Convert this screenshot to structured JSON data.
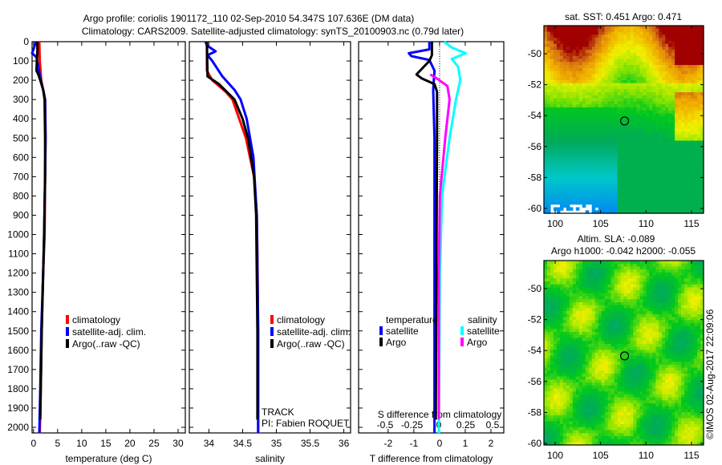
{
  "title": "Argo profile: coriolis 1901172_110 02-Sep-2010 54.347S 107.636E (DM data)",
  "subtitle": "Climatology: CARS2009. Satellite-adjusted climatology: synTS_20100903.nc (0.79d later)",
  "colors": {
    "climatology": "#ff0000",
    "satellite": "#0000ff",
    "argo": "#000000",
    "sal_satellite": "#00ffff",
    "sal_argo": "#ff00ff"
  },
  "chart_data": [
    {
      "type": "line",
      "name": "temperature-profile",
      "xlabel": "temperature (deg C)",
      "xlim": [
        -0.3,
        31.5
      ],
      "ylim": [
        2050,
        0
      ],
      "xticks": [
        "0",
        "5",
        "10",
        "15",
        "20",
        "25",
        "30"
      ],
      "xtick_values": [
        0,
        5,
        10,
        15,
        20,
        25,
        30
      ],
      "yticks": [
        "0",
        "100",
        "200",
        "300",
        "400",
        "500",
        "600",
        "700",
        "800",
        "900",
        "1000",
        "1100",
        "1200",
        "1300",
        "1400",
        "1500",
        "1600",
        "1700",
        "1800",
        "1900",
        "2000"
      ],
      "legend": [
        "climatology",
        "satellite-adj. clim.",
        "Argo(..raw -QC)"
      ],
      "series": [
        {
          "name": "climatology",
          "color": "#ff0000",
          "depth": [
            0,
            100,
            200,
            300,
            500,
            700,
            1000,
            1200,
            1500,
            1800,
            2030
          ],
          "values": [
            1.2,
            1.3,
            1.6,
            2.4,
            2.5,
            2.4,
            2.3,
            2.0,
            1.7,
            1.5,
            1.3
          ]
        },
        {
          "name": "satellite-adj. clim.",
          "color": "#0000ff",
          "depth": [
            0,
            40,
            60,
            80,
            120,
            200,
            260,
            300,
            500,
            700,
            1000,
            1200,
            1500,
            1800,
            2030
          ],
          "values": [
            0.5,
            0.0,
            -0.3,
            0.6,
            0.9,
            1.5,
            2.1,
            2.4,
            2.5,
            2.4,
            2.2,
            2.0,
            1.6,
            1.4,
            1.2
          ]
        },
        {
          "name": "Argo(..raw -QC)",
          "color": "#000000",
          "depth": [
            0,
            50,
            150,
            170,
            200,
            250,
            300,
            500,
            700,
            1000,
            1200,
            1500,
            1800,
            1960
          ],
          "values": [
            0.8,
            0.8,
            0.6,
            1.0,
            1.4,
            2.0,
            2.3,
            2.4,
            2.4,
            2.2,
            2.0,
            1.7,
            1.5,
            1.4
          ]
        }
      ]
    },
    {
      "type": "line",
      "name": "salinity-profile",
      "xlabel": "salinity",
      "xlim": [
        33.71,
        36.1
      ],
      "ylim": [
        2050,
        0
      ],
      "xticks": [
        "34",
        "34.5",
        "35",
        "35.5",
        "36"
      ],
      "xtick_values": [
        34,
        34.5,
        35,
        35.5,
        36
      ],
      "legend": [
        "climatology",
        "satellite-adj. clim.",
        "Argo(..raw -QC)"
      ],
      "annotation": [
        "TRACK",
        "PI: Fabien ROQUET"
      ],
      "series": [
        {
          "name": "climatology",
          "color": "#ff0000",
          "depth": [
            0,
            150,
            200,
            260,
            300,
            400,
            500,
            700,
            900,
            1100,
            1500,
            2030
          ],
          "values": [
            33.97,
            33.97,
            34.05,
            34.25,
            34.35,
            34.45,
            34.55,
            34.67,
            34.71,
            34.72,
            34.73,
            34.73
          ]
        },
        {
          "name": "satellite-adj. clim.",
          "color": "#0000ff",
          "depth": [
            0,
            20,
            50,
            70,
            100,
            180,
            250,
            300,
            400,
            600,
            900,
            1500,
            2030
          ],
          "values": [
            33.95,
            33.97,
            34.1,
            33.98,
            34.05,
            34.2,
            34.38,
            34.47,
            34.56,
            34.66,
            34.71,
            34.73,
            34.73
          ]
        },
        {
          "name": "Argo(..raw -QC)",
          "color": "#000000",
          "depth": [
            0,
            180,
            220,
            300,
            400,
            500,
            700,
            900,
            1500,
            1960
          ],
          "values": [
            33.97,
            33.98,
            34.15,
            34.38,
            34.5,
            34.58,
            34.67,
            34.7,
            34.72,
            34.72
          ]
        }
      ]
    },
    {
      "type": "line",
      "name": "difference-profile",
      "xlabel": "T difference from climatology",
      "x2label": "S difference from climatology",
      "xlim": [
        -3.15,
        2.5
      ],
      "xticks": [
        "-2",
        "-1",
        "0",
        "1",
        "2"
      ],
      "xtick_values": [
        -2,
        -1,
        0,
        1,
        2
      ],
      "x2ticks": [
        "-0.5",
        "-0.25",
        "0",
        "0.25",
        "0.5"
      ],
      "x2tick_values": [
        -0.5,
        -0.25,
        0,
        0.25,
        0.5
      ],
      "legend": {
        "temperature": "temperature",
        "salinity": "salinity",
        "t_sat": "satellite",
        "t_argo": "Argo",
        "s_sat": "satellite",
        "s_argo": "Argo"
      },
      "series": [
        {
          "name": "T satellite",
          "units": "T",
          "color": "#0000ff",
          "depth": [
            0,
            40,
            60,
            75,
            95,
            150,
            250,
            500,
            1000,
            2030
          ],
          "values": [
            -0.4,
            -0.4,
            -1.2,
            -1.1,
            -0.4,
            -0.2,
            -0.25,
            -0.2,
            -0.2,
            -0.2
          ]
        },
        {
          "name": "T Argo",
          "units": "T",
          "color": "#000000",
          "depth": [
            0,
            70,
            100,
            170,
            190,
            220,
            260,
            500,
            1000,
            1960
          ],
          "values": [
            -0.3,
            -0.3,
            -0.4,
            -0.9,
            -0.7,
            -0.2,
            -0.1,
            -0.1,
            -0.12,
            -0.15
          ]
        },
        {
          "name": "S satellite",
          "units": "S",
          "color": "#00ffff",
          "depth": [
            0,
            30,
            60,
            90,
            130,
            200,
            300,
            500,
            800,
            1200,
            2030
          ],
          "values": [
            0.05,
            0.12,
            0.25,
            0.12,
            0.18,
            0.2,
            0.16,
            0.1,
            0.03,
            0.01,
            0.0
          ]
        },
        {
          "name": "S Argo",
          "units": "S",
          "color": "#ff00ff",
          "depth": [
            170,
            190,
            230,
            300,
            500,
            800,
            1200,
            1960
          ],
          "values": [
            -0.08,
            -0.02,
            0.08,
            0.1,
            0.06,
            0.01,
            0.0,
            0.0
          ]
        }
      ]
    },
    {
      "type": "heatmap",
      "name": "sst-map",
      "title": "sat. SST: 0.451  Argo: 0.471",
      "xlim": [
        98.8,
        116.3
      ],
      "ylim": [
        -60.3,
        -48.4
      ],
      "xticks": [
        "100",
        "105",
        "110",
        "115"
      ],
      "xtick_values": [
        100,
        105,
        110,
        115
      ],
      "yticks": [
        "-50",
        "-52",
        "-54",
        "-56",
        "-58",
        "-60"
      ],
      "ytick_values": [
        -50,
        -52,
        -54,
        -56,
        -58,
        -60
      ],
      "marker": {
        "lon": 107.636,
        "lat": -54.347
      }
    },
    {
      "type": "heatmap",
      "name": "sla-map",
      "title": "Altim. SLA: -0.089",
      "subtitle": "Argo h1000: -0.042 h2000: -0.055",
      "xlim": [
        98.8,
        116.3
      ],
      "ylim": [
        -60.3,
        -48.4
      ],
      "xticks": [
        "100",
        "105",
        "110",
        "115"
      ],
      "xtick_values": [
        100,
        105,
        110,
        115
      ],
      "yticks": [
        "-50",
        "-52",
        "-54",
        "-56",
        "-58",
        "-60"
      ],
      "ytick_values": [
        -50,
        -52,
        -54,
        -56,
        -58,
        -60
      ],
      "marker": {
        "lon": 107.636,
        "lat": -54.347
      }
    }
  ],
  "credit": "©IMOS 02-Aug-2017 22:09:06"
}
